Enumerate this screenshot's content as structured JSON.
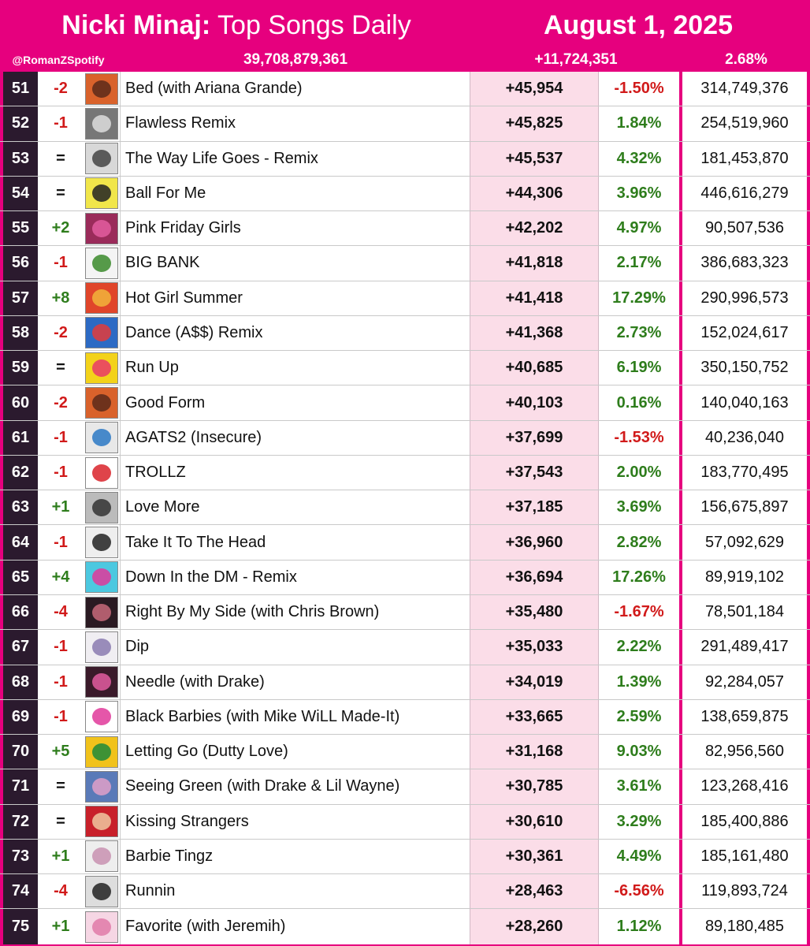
{
  "header": {
    "artist": "Nicki Minaj:",
    "title": "Top Songs Daily",
    "date": "August 1, 2025",
    "handle": "@RomanZSpotify",
    "total_streams": "39,708,879,361",
    "daily_gain": "+11,724,351",
    "daily_pct": "2.68%"
  },
  "colors": {
    "brand_pink": "#e6007e",
    "rank_bg": "#2b1a2e",
    "up": "#2e7d1c",
    "down": "#d11a1a",
    "daily_bg": "#fbdde8"
  },
  "rows": [
    {
      "rank": "51",
      "change": "-2",
      "song": "Bed (with Ariana Grande)",
      "daily": "+45,954",
      "pct": "-1.50%",
      "total": "314,749,376",
      "art": [
        "#d9622b",
        "#5a2a1a"
      ]
    },
    {
      "rank": "52",
      "change": "-1",
      "song": "Flawless Remix",
      "daily": "+45,825",
      "pct": "1.84%",
      "total": "254,519,960",
      "art": [
        "#777777",
        "#dddddd"
      ]
    },
    {
      "rank": "53",
      "change": "=",
      "song": "The Way Life Goes - Remix",
      "daily": "+45,537",
      "pct": "4.32%",
      "total": "181,453,870",
      "art": [
        "#d8d8d8",
        "#444444"
      ]
    },
    {
      "rank": "54",
      "change": "=",
      "song": "Ball For Me",
      "daily": "+44,306",
      "pct": "3.96%",
      "total": "446,616,279",
      "art": [
        "#f1e64a",
        "#222222"
      ]
    },
    {
      "rank": "55",
      "change": "+2",
      "song": "Pink Friday Girls",
      "daily": "+42,202",
      "pct": "4.97%",
      "total": "90,507,536",
      "art": [
        "#9a2b5a",
        "#e35da0"
      ]
    },
    {
      "rank": "56",
      "change": "-1",
      "song": "BIG BANK",
      "daily": "+41,818",
      "pct": "2.17%",
      "total": "386,683,323",
      "art": [
        "#f4f4f4",
        "#3a8a2a"
      ]
    },
    {
      "rank": "57",
      "change": "+8",
      "song": "Hot Girl Summer",
      "daily": "+41,418",
      "pct": "17.29%",
      "total": "290,996,573",
      "art": [
        "#e0452a",
        "#f1b43b"
      ]
    },
    {
      "rank": "58",
      "change": "-2",
      "song": "Dance (A$$) Remix",
      "daily": "+41,368",
      "pct": "2.73%",
      "total": "152,024,617",
      "art": [
        "#2c6ac4",
        "#e33b3b"
      ]
    },
    {
      "rank": "59",
      "change": "=",
      "song": "Run Up",
      "daily": "+40,685",
      "pct": "6.19%",
      "total": "350,150,752",
      "art": [
        "#f3d21a",
        "#e8396a"
      ]
    },
    {
      "rank": "60",
      "change": "-2",
      "song": "Good Form",
      "daily": "+40,103",
      "pct": "0.16%",
      "total": "140,040,163",
      "art": [
        "#d9622b",
        "#5a2a1a"
      ]
    },
    {
      "rank": "61",
      "change": "-1",
      "song": "AGATS2 (Insecure)",
      "daily": "+37,699",
      "pct": "-1.53%",
      "total": "40,236,040",
      "art": [
        "#e8e8e8",
        "#2a78c4"
      ]
    },
    {
      "rank": "62",
      "change": "-1",
      "song": "TROLLZ",
      "daily": "+37,543",
      "pct": "2.00%",
      "total": "183,770,495",
      "art": [
        "#ffffff",
        "#d9232a"
      ]
    },
    {
      "rank": "63",
      "change": "+1",
      "song": "Love More",
      "daily": "+37,185",
      "pct": "3.69%",
      "total": "156,675,897",
      "art": [
        "#bbbbbb",
        "#333333"
      ]
    },
    {
      "rank": "64",
      "change": "-1",
      "song": "Take It To The Head",
      "daily": "+36,960",
      "pct": "2.82%",
      "total": "57,092,629",
      "art": [
        "#eeeeee",
        "#222222"
      ]
    },
    {
      "rank": "65",
      "change": "+4",
      "song": "Down In the DM - Remix",
      "daily": "+36,694",
      "pct": "17.26%",
      "total": "89,919,102",
      "art": [
        "#4cc8e0",
        "#e0389a"
      ]
    },
    {
      "rank": "66",
      "change": "-4",
      "song": "Right By My Side (with Chris Brown)",
      "daily": "+35,480",
      "pct": "-1.67%",
      "total": "78,501,184",
      "art": [
        "#2a1a22",
        "#c86a7a"
      ]
    },
    {
      "rank": "67",
      "change": "-1",
      "song": "Dip",
      "daily": "+35,033",
      "pct": "2.22%",
      "total": "291,489,417",
      "art": [
        "#f0eef2",
        "#8a7ab0"
      ]
    },
    {
      "rank": "68",
      "change": "-1",
      "song": "Needle (with Drake)",
      "daily": "+34,019",
      "pct": "1.39%",
      "total": "92,284,057",
      "art": [
        "#3a1a2a",
        "#e35da0"
      ]
    },
    {
      "rank": "69",
      "change": "-1",
      "song": "Black Barbies (with Mike WiLL Made-It)",
      "daily": "+33,665",
      "pct": "2.59%",
      "total": "138,659,875",
      "art": [
        "#ffffff",
        "#e0389a"
      ]
    },
    {
      "rank": "70",
      "change": "+5",
      "song": "Letting Go (Dutty Love)",
      "daily": "+31,168",
      "pct": "9.03%",
      "total": "82,956,560",
      "art": [
        "#f1c21b",
        "#1f8a3a"
      ]
    },
    {
      "rank": "71",
      "change": "=",
      "song": "Seeing Green (with Drake & Lil Wayne)",
      "daily": "+30,785",
      "pct": "3.61%",
      "total": "123,268,416",
      "art": [
        "#5a7ab8",
        "#e0a0c8"
      ]
    },
    {
      "rank": "72",
      "change": "=",
      "song": "Kissing Strangers",
      "daily": "+30,610",
      "pct": "3.29%",
      "total": "185,400,886",
      "art": [
        "#c8202a",
        "#f0c8a0"
      ]
    },
    {
      "rank": "73",
      "change": "+1",
      "song": "Barbie Tingz",
      "daily": "+30,361",
      "pct": "4.49%",
      "total": "185,161,480",
      "art": [
        "#eeeeee",
        "#c890b0"
      ]
    },
    {
      "rank": "74",
      "change": "-4",
      "song": "Runnin",
      "daily": "+28,463",
      "pct": "-6.56%",
      "total": "119,893,724",
      "art": [
        "#dddddd",
        "#222222"
      ]
    },
    {
      "rank": "75",
      "change": "+1",
      "song": "Favorite (with Jeremih)",
      "daily": "+28,260",
      "pct": "1.12%",
      "total": "89,180,485",
      "art": [
        "#f6d6e4",
        "#e07aa8"
      ]
    }
  ]
}
